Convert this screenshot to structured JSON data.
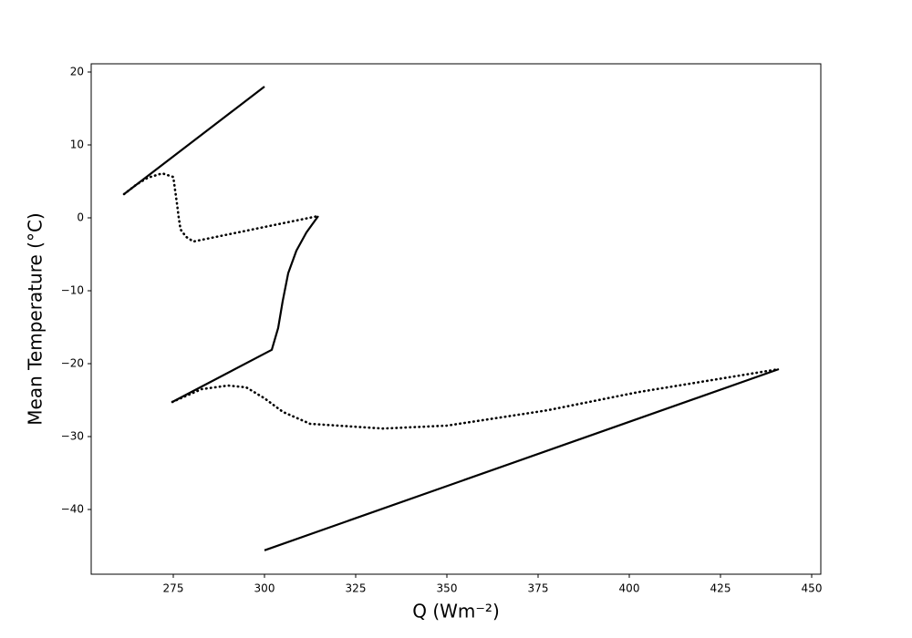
{
  "chart_data": {
    "type": "line",
    "x_label": "Q (Wm⁻²)",
    "y_label": "Mean Temperature (°C)",
    "xlim": [
      252.5,
      452.5
    ],
    "ylim": [
      -48.875,
      21.125
    ],
    "xticks": [
      275,
      300,
      325,
      350,
      375,
      400,
      425,
      450
    ],
    "yticks": [
      {
        "value": -40,
        "label": "−40"
      },
      {
        "value": -30,
        "label": "−30"
      },
      {
        "value": -20,
        "label": "−20"
      },
      {
        "value": -10,
        "label": "−10"
      },
      0,
      10,
      20
    ],
    "series": [
      {
        "color": "#000000",
        "style": "solid",
        "x": [
          261.5,
          300,
          null,
          274.75,
          302,
          303.75,
          305,
          306.5,
          308.75,
          311.5,
          314.75,
          null,
          300,
          441
        ],
        "values": [
          3.25,
          18,
          null,
          -25.25,
          -18.1,
          -15.1,
          -11.4,
          -7.6,
          -4.5,
          -2,
          0.25,
          null,
          -45.6,
          -20.75
        ]
      },
      {
        "color": "#000000",
        "style": "dotted",
        "x": [
          261.5,
          265,
          268,
          272,
          275,
          276,
          276.5,
          277,
          278.5,
          280.5,
          314.75,
          null,
          274.75,
          282.75,
          290,
          295,
          300,
          305,
          312.5,
          332.5,
          350,
          377.5,
          402.5,
          441
        ],
        "values": [
          3.25,
          4.6,
          5.5,
          6.1,
          5.6,
          2,
          0,
          -1.6,
          -2.6,
          -3.25,
          0.25,
          null,
          -25.25,
          -23.5,
          -23,
          -23.25,
          -24.75,
          -26.6,
          -28.25,
          -28.9,
          -28.5,
          -26.4,
          -23.9,
          -20.75
        ]
      }
    ]
  }
}
